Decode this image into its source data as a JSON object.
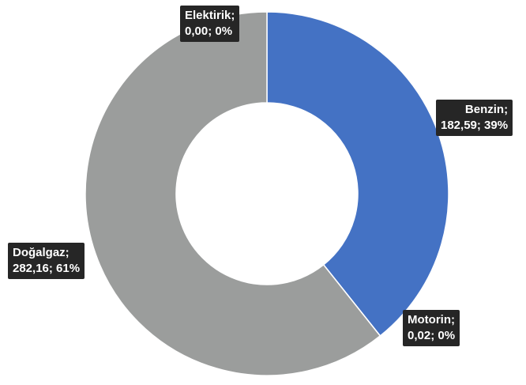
{
  "chart_data": {
    "type": "pie",
    "variant": "donut",
    "slices": [
      {
        "name": "Benzin",
        "value": 182.59,
        "percent": 39,
        "color": "#4472c4",
        "label_line1": "Benzin;",
        "label_line2": "182,59; 39%"
      },
      {
        "name": "Motorin",
        "value": 0.02,
        "percent": 0,
        "color": "#ed7d31",
        "label_line1": "Motorin;",
        "label_line2": "0,02; 0%"
      },
      {
        "name": "Doğalgaz",
        "value": 282.16,
        "percent": 61,
        "color": "#9b9d9c",
        "label_line1": "Doğalgaz;",
        "label_line2": "282,16; 61%"
      },
      {
        "name": "Elektirik",
        "value": 0.0,
        "percent": 0,
        "color": "#ffc000",
        "label_line1": "Elektirik;",
        "label_line2": "0,00; 0%"
      }
    ],
    "start_angle": "12 o'clock",
    "direction": "clockwise",
    "legend": "none"
  }
}
